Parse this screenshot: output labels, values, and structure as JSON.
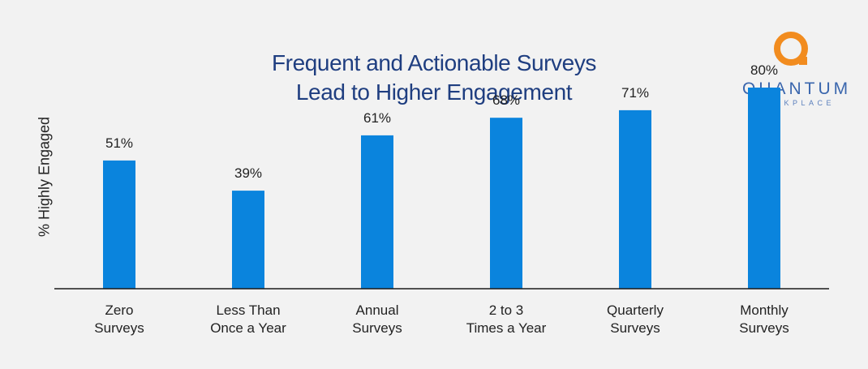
{
  "title_lines": [
    "Frequent and Actionable Surveys",
    "Lead to Higher Engagement"
  ],
  "logo": {
    "brand": "QUANTUM",
    "sub": "WORKPLACE",
    "accent": "#f28c1f",
    "text_color": "#3a66ad"
  },
  "colors": {
    "bar": "#0a84dd",
    "title": "#1f3e80",
    "axis": "#1a1a1a",
    "background": "#f2f2f2"
  },
  "chart_data": {
    "type": "bar",
    "title": "Frequent and Actionable Surveys Lead to Higher Engagement",
    "ylabel": "% Highly Engaged",
    "xlabel": "",
    "ylim": [
      0,
      100
    ],
    "grid": false,
    "categories": [
      [
        "Zero",
        "Surveys"
      ],
      [
        "Less Than",
        "Once a Year"
      ],
      [
        "Annual",
        "Surveys"
      ],
      [
        "2 to 3",
        "Times a Year"
      ],
      [
        "Quarterly",
        "Surveys"
      ],
      [
        "Monthly",
        "Surveys"
      ]
    ],
    "values": [
      51,
      39,
      61,
      68,
      71,
      80
    ],
    "data_labels": [
      "51%",
      "39%",
      "61%",
      "68%",
      "71%",
      "80%"
    ]
  }
}
